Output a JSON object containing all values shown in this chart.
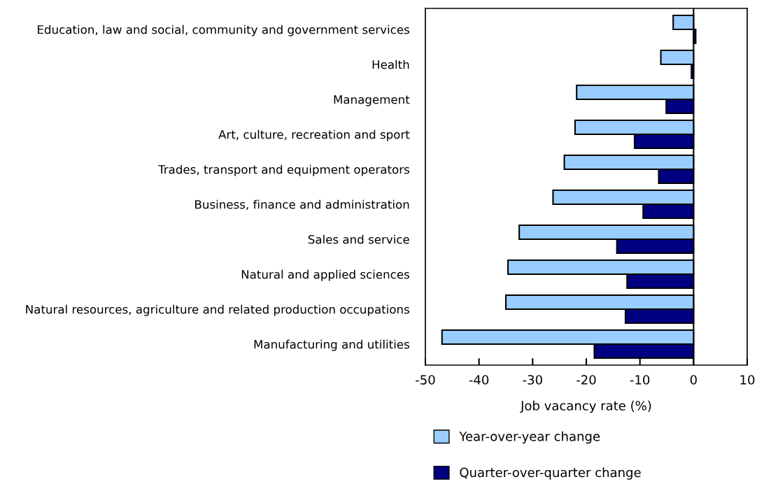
{
  "chart_data": {
    "type": "bar",
    "orientation": "horizontal",
    "xlabel": "Job vacancy rate (%)",
    "categories": [
      "Education, law and social, community and government services",
      "Health",
      "Management",
      "Art, culture, recreation and sport",
      "Trades, transport and equipment operators",
      "Business, finance and administration",
      "Sales and service",
      "Natural and applied sciences",
      "Natural resources, agriculture and related production occupations",
      "Manufacturing and utilities"
    ],
    "series": [
      {
        "name": "Year-over-year change",
        "color": "#99ccff",
        "values": [
          -3.8,
          -6.1,
          -21.8,
          -22.1,
          -24.1,
          -26.2,
          -32.5,
          -34.6,
          -35.0,
          -46.9
        ]
      },
      {
        "name": "Quarter-over-quarter change",
        "color": "#000080",
        "values": [
          0.4,
          -0.4,
          -5.1,
          -11.0,
          -6.5,
          -9.4,
          -14.3,
          -12.4,
          -12.7,
          -18.5
        ]
      }
    ],
    "xlim": [
      -50,
      10
    ],
    "xticks": [
      -50,
      -40,
      -30,
      -20,
      -10,
      0,
      10
    ],
    "ref_lines": [
      {
        "axis": "x",
        "value": 0,
        "color": "#000000"
      }
    ],
    "grid": false,
    "legend": "bottom"
  }
}
